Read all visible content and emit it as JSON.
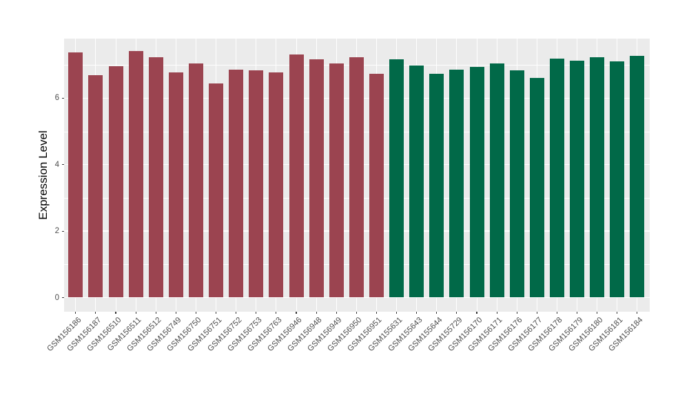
{
  "chart_data": {
    "type": "bar",
    "title": "",
    "xlabel": "",
    "ylabel": "Expression Level",
    "ylim": [
      -0.43,
      7.79
    ],
    "yticks": [
      0,
      2,
      4,
      6
    ],
    "minor_gridlines": [
      1,
      3,
      5,
      7
    ],
    "grid": "on",
    "legend": "none",
    "panel_bg": "#EBEBEB",
    "gridline_color": "#FFFFFF",
    "tick_color": "#333333",
    "tick_label_color": "#4D4D4D",
    "categories": [
      "GSM156186",
      "GSM156187",
      "GSM156510",
      "GSM156511",
      "GSM156512",
      "GSM156749",
      "GSM156750",
      "GSM156751",
      "GSM156752",
      "GSM156753",
      "GSM156763",
      "GSM156946",
      "GSM156948",
      "GSM156949",
      "GSM156950",
      "GSM156951",
      "GSM155631",
      "GSM155643",
      "GSM155644",
      "GSM155729",
      "GSM156170",
      "GSM156171",
      "GSM156176",
      "GSM156177",
      "GSM156178",
      "GSM156179",
      "GSM156180",
      "GSM156181",
      "GSM156184"
    ],
    "values": [
      7.37,
      6.69,
      6.97,
      7.42,
      7.24,
      6.77,
      7.05,
      6.44,
      6.86,
      6.84,
      6.78,
      7.32,
      7.17,
      7.05,
      7.22,
      6.73,
      7.17,
      6.99,
      6.74,
      6.85,
      6.94,
      7.05,
      6.83,
      6.6,
      7.19,
      7.13,
      7.22,
      7.11,
      7.27
    ],
    "groups": [
      "group1",
      "group1",
      "group1",
      "group1",
      "group1",
      "group1",
      "group1",
      "group1",
      "group1",
      "group1",
      "group1",
      "group1",
      "group1",
      "group1",
      "group1",
      "group1",
      "group2",
      "group2",
      "group2",
      "group2",
      "group2",
      "group2",
      "group2",
      "group2",
      "group2",
      "group2",
      "group2",
      "group2",
      "group2"
    ],
    "group_colors": {
      "group1": "#9B4450",
      "group2": "#016948"
    }
  }
}
